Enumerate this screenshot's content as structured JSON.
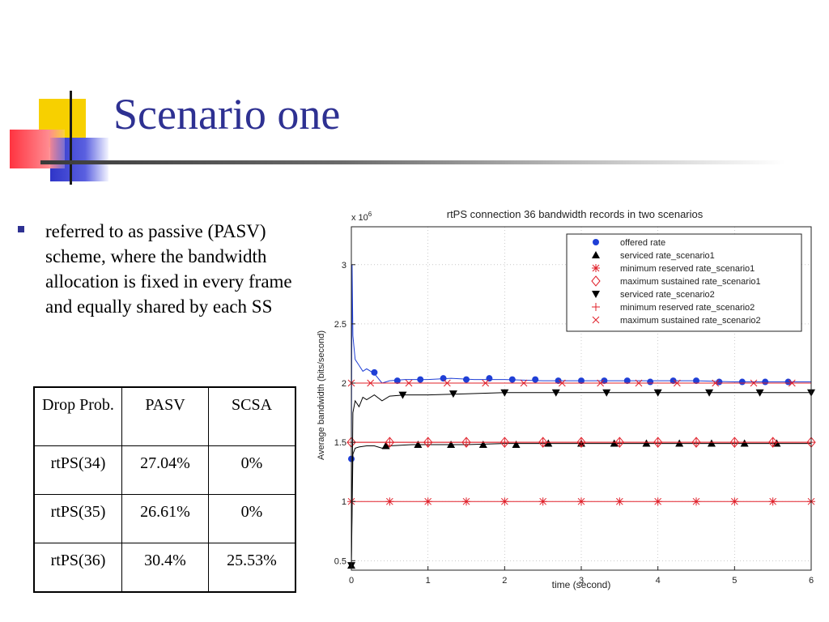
{
  "slide": {
    "title": "Scenario one",
    "bullet": "referred to as passive (PASV) scheme, where the bandwidth allocation is fixed in every frame and equally shared by each SS"
  },
  "table": {
    "headers": [
      "Drop Prob.",
      "PASV",
      "SCSA"
    ],
    "rows": [
      [
        "rtPS(34)",
        "27.04%",
        "0%"
      ],
      [
        "rtPS(35)",
        "26.61%",
        "0%"
      ],
      [
        "rtPS(36)",
        "30.4%",
        "25.53%"
      ]
    ]
  },
  "chart_data": {
    "type": "line",
    "title": "rtPS connection 36 bandwidth records in two scenarios",
    "xlabel": "time (second)",
    "ylabel": "Average bandwidth (bits/second)",
    "y_multiplier": "x 10",
    "y_exponent": "6",
    "xlim": [
      0,
      6
    ],
    "ylim": [
      0.42,
      3.32
    ],
    "x_ticks": [
      "0",
      "1",
      "2",
      "3",
      "4",
      "5",
      "6"
    ],
    "y_ticks": [
      "0.5",
      "1",
      "1.5",
      "2",
      "2.5",
      "3"
    ],
    "grid": true,
    "legend_position": "top-right",
    "series": [
      {
        "name": "offered rate",
        "color": "#1f3fd6",
        "marker": "dot",
        "line": true,
        "x": [
          0,
          0.01,
          0.02,
          0.05,
          0.1,
          0.15,
          0.2,
          0.3,
          0.4,
          0.5,
          0.7,
          1.0,
          1.3,
          1.6,
          2.0,
          2.5,
          3.0,
          3.5,
          4.0,
          4.5,
          5.0,
          5.5,
          6.0
        ],
        "y": [
          1.36,
          3.0,
          2.4,
          2.2,
          2.15,
          2.1,
          2.12,
          2.08,
          2.0,
          2.02,
          2.03,
          2.03,
          2.04,
          2.03,
          2.03,
          2.02,
          2.02,
          2.02,
          2.02,
          2.02,
          2.01,
          2.01,
          2.01
        ],
        "markers_x": [
          0,
          0.3,
          0.6,
          0.9,
          1.2,
          1.5,
          1.8,
          2.1,
          2.4,
          2.7,
          3.0,
          3.3,
          3.6,
          3.9,
          4.2,
          4.5,
          4.8,
          5.1,
          5.4,
          5.7
        ],
        "markers_y": [
          1.36,
          2.09,
          2.02,
          2.03,
          2.04,
          2.03,
          2.04,
          2.03,
          2.03,
          2.02,
          2.02,
          2.02,
          2.02,
          2.01,
          2.02,
          2.02,
          2.01,
          2.01,
          2.01,
          2.01
        ]
      },
      {
        "name": "serviced rate_scenario1",
        "color": "#000000",
        "marker": "triangle-up",
        "line": true,
        "x": [
          0,
          0.02,
          0.05,
          0.1,
          0.2,
          0.3,
          0.4,
          0.5,
          0.8,
          1.0,
          1.5,
          2.0,
          3.0,
          4.0,
          5.0,
          6.0
        ],
        "y": [
          0.45,
          1.4,
          1.45,
          1.46,
          1.47,
          1.47,
          1.45,
          1.47,
          1.48,
          1.48,
          1.48,
          1.49,
          1.49,
          1.49,
          1.49,
          1.49
        ],
        "markers_x": [
          0,
          0.45,
          0.87,
          1.3,
          1.72,
          2.15,
          2.57,
          3.0,
          3.43,
          3.85,
          4.28,
          4.7,
          5.13,
          5.55
        ],
        "markers_y": [
          0.46,
          1.47,
          1.48,
          1.48,
          1.48,
          1.48,
          1.49,
          1.49,
          1.49,
          1.49,
          1.49,
          1.49,
          1.49,
          1.49
        ]
      },
      {
        "name": "minimum reserved rate_scenario1",
        "color": "#e0202a",
        "marker": "asterisk",
        "line": true,
        "x": [
          0,
          6
        ],
        "y": [
          1.0,
          1.0
        ],
        "markers_x": [
          0,
          0.5,
          1.0,
          1.5,
          2.0,
          2.5,
          3.0,
          3.5,
          4.0,
          4.5,
          5.0,
          5.5,
          6.0
        ],
        "markers_y": [
          1.0,
          1.0,
          1.0,
          1.0,
          1.0,
          1.0,
          1.0,
          1.0,
          1.0,
          1.0,
          1.0,
          1.0,
          1.0
        ]
      },
      {
        "name": "maximum sustained rate_scenario1",
        "color": "#e0202a",
        "marker": "diamond",
        "line": true,
        "x": [
          0,
          6
        ],
        "y": [
          1.5,
          1.5
        ],
        "markers_x": [
          0,
          0.5,
          1.0,
          1.5,
          2.0,
          2.5,
          3.0,
          3.5,
          4.0,
          4.5,
          5.0,
          5.5,
          6.0
        ],
        "markers_y": [
          1.5,
          1.5,
          1.5,
          1.5,
          1.5,
          1.5,
          1.5,
          1.5,
          1.5,
          1.5,
          1.5,
          1.5,
          1.5
        ]
      },
      {
        "name": "serviced rate_scenario2",
        "color": "#000000",
        "marker": "triangle-down",
        "line": true,
        "x": [
          0,
          0.02,
          0.05,
          0.1,
          0.15,
          0.2,
          0.3,
          0.4,
          0.5,
          0.7,
          1.0,
          1.5,
          2.0,
          3.0,
          4.0,
          5.0,
          6.0
        ],
        "y": [
          0.45,
          1.75,
          1.85,
          1.8,
          1.88,
          1.86,
          1.9,
          1.85,
          1.89,
          1.9,
          1.9,
          1.91,
          1.92,
          1.92,
          1.92,
          1.92,
          1.92
        ],
        "markers_x": [
          0,
          0.67,
          1.33,
          2.0,
          2.67,
          3.33,
          4.0,
          4.67,
          5.33,
          6.0
        ],
        "markers_y": [
          0.46,
          1.9,
          1.91,
          1.92,
          1.92,
          1.92,
          1.92,
          1.92,
          1.92,
          1.92
        ]
      },
      {
        "name": "minimum reserved rate_scenario2",
        "color": "#e0202a",
        "marker": "plus",
        "line": true,
        "x": [
          0,
          6
        ],
        "y": [
          1.5,
          1.5
        ],
        "markers_x": [
          0,
          0.5,
          1.0,
          1.5,
          2.0,
          2.5,
          3.0,
          3.5,
          4.0,
          4.5,
          5.0,
          5.5,
          6.0
        ],
        "markers_y": [
          1.5,
          1.5,
          1.5,
          1.5,
          1.5,
          1.5,
          1.5,
          1.5,
          1.5,
          1.5,
          1.5,
          1.5,
          1.5
        ]
      },
      {
        "name": "maximum sustained rate_scenario2",
        "color": "#e0202a",
        "marker": "x",
        "line": true,
        "x": [
          0,
          6
        ],
        "y": [
          2.0,
          2.0
        ],
        "markers_x": [
          0,
          0.25,
          0.75,
          1.25,
          1.75,
          2.25,
          2.75,
          3.25,
          3.75,
          4.25,
          4.75,
          5.25,
          5.75
        ],
        "markers_y": [
          2.0,
          2.0,
          2.0,
          2.0,
          2.0,
          2.0,
          2.0,
          2.0,
          2.0,
          2.0,
          2.0,
          2.0,
          2.0
        ]
      }
    ]
  }
}
